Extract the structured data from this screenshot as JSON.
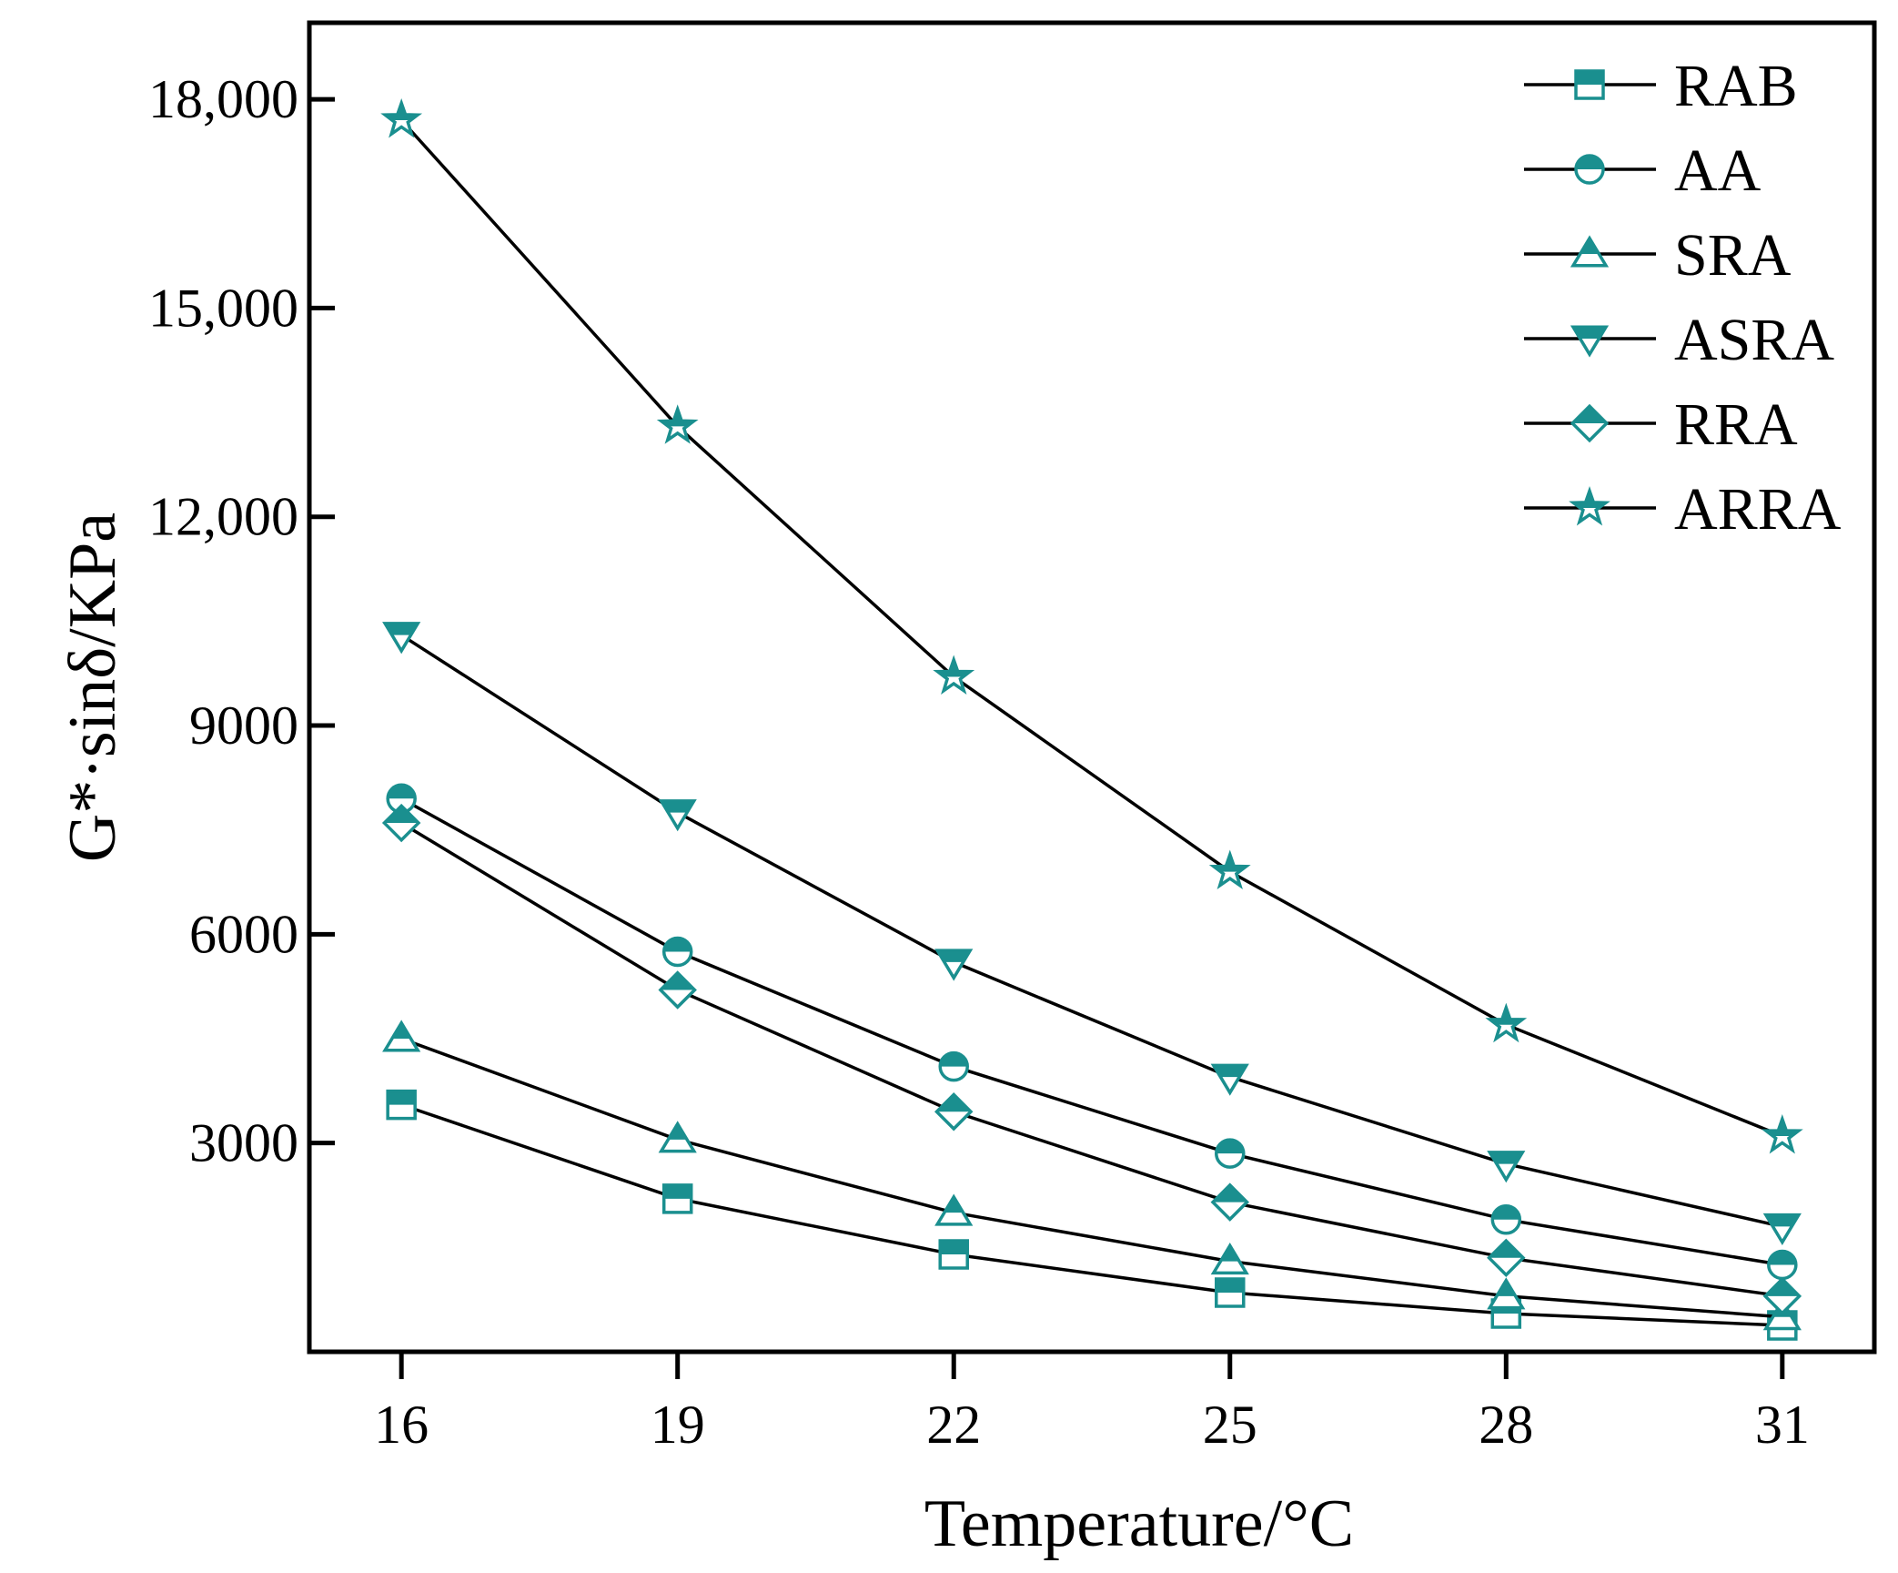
{
  "chart_data": {
    "type": "line",
    "title": "",
    "xlabel": "Temperature/°C",
    "ylabel": "G*·sinδ/KPa",
    "x": [
      16,
      19,
      22,
      25,
      28,
      31
    ],
    "xticks": [
      "16",
      "19",
      "22",
      "25",
      "28",
      "31"
    ],
    "yticks": [
      {
        "value": 3000,
        "label": "3000"
      },
      {
        "value": 6000,
        "label": "6000"
      },
      {
        "value": 9000,
        "label": "9000"
      },
      {
        "value": 12000,
        "label": "12,000"
      },
      {
        "value": 15000,
        "label": "15,000"
      },
      {
        "value": 18000,
        "label": "18,000"
      }
    ],
    "ylim": [
      0,
      19100
    ],
    "xlim": [
      15,
      32
    ],
    "grid": false,
    "legend_position": "top-right",
    "series": [
      {
        "name": "RAB",
        "marker": "square",
        "values": [
          3550,
          2200,
          1400,
          850,
          550,
          380
        ]
      },
      {
        "name": "AA",
        "marker": "circle",
        "values": [
          7950,
          5750,
          4100,
          2850,
          1900,
          1250
        ]
      },
      {
        "name": "SRA",
        "marker": "triangle-up",
        "values": [
          4500,
          3050,
          2000,
          1300,
          800,
          500
        ]
      },
      {
        "name": "ASRA",
        "marker": "triangle-down",
        "values": [
          10300,
          7750,
          5600,
          3950,
          2700,
          1800
        ]
      },
      {
        "name": "RRA",
        "marker": "diamond",
        "values": [
          7600,
          5200,
          3450,
          2150,
          1350,
          800
        ]
      },
      {
        "name": "ARRA",
        "marker": "star",
        "values": [
          17700,
          13300,
          9700,
          6900,
          4700,
          3100
        ]
      }
    ],
    "colors": {
      "line": "#000000",
      "marker": "#1a8f8f",
      "axis": "#000000"
    }
  }
}
